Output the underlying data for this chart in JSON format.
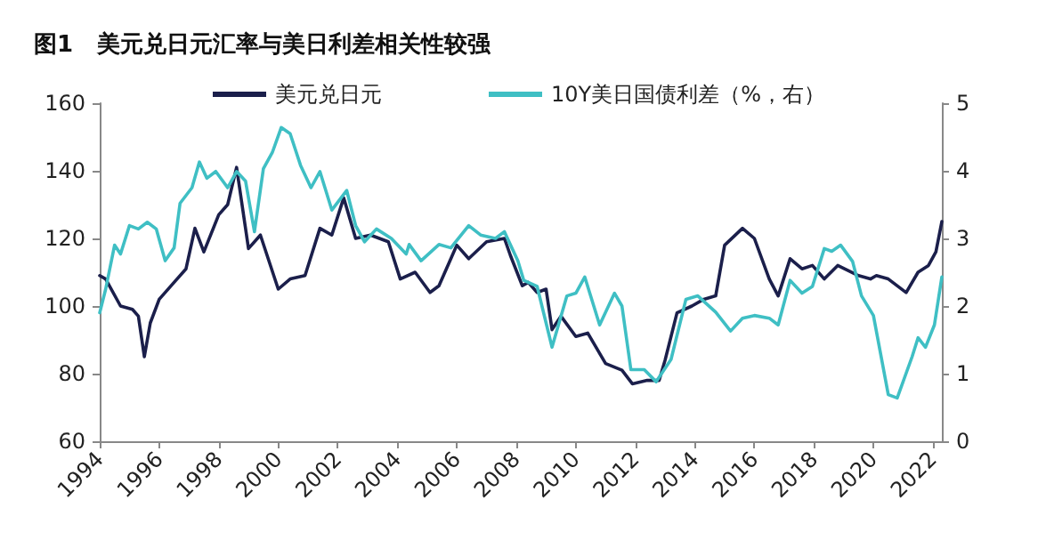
{
  "chart_data": {
    "type": "line",
    "title": "图1   美元兑日元汇率与美日利差相关性较强",
    "legend": "top",
    "grid": false,
    "marker": "none",
    "line_style": "solid",
    "xlim": [
      1994,
      2022.3
    ],
    "xticks": [
      1994,
      1996,
      1998,
      2000,
      2002,
      2004,
      2006,
      2008,
      2010,
      2012,
      2014,
      2016,
      2018,
      2020,
      2022
    ],
    "ylim": [
      60,
      160
    ],
    "yticks": [
      60,
      80,
      100,
      120,
      140,
      160
    ],
    "y2lim": [
      0,
      5
    ],
    "y2ticks": [
      0,
      1,
      2,
      3,
      4,
      5
    ],
    "series": [
      {
        "name": "美元兑日元",
        "color": "#1b1f4b",
        "axis": "y",
        "x": [
          1994.0,
          1994.2,
          1994.7,
          1995.1,
          1995.3,
          1995.5,
          1995.7,
          1996.0,
          1996.5,
          1996.9,
          1997.2,
          1997.5,
          1998.0,
          1998.3,
          1998.6,
          1999.0,
          1999.4,
          2000.0,
          2000.4,
          2000.9,
          2001.4,
          2001.8,
          2002.2,
          2002.6,
          2003.1,
          2003.7,
          2004.1,
          2004.6,
          2005.1,
          2005.4,
          2006.0,
          2006.4,
          2007.0,
          2007.6,
          2007.8,
          2008.2,
          2008.4,
          2008.7,
          2009.0,
          2009.2,
          2009.5,
          2010.0,
          2010.4,
          2011.0,
          2011.55,
          2011.9,
          2012.4,
          2012.8,
          2013.0,
          2013.4,
          2013.9,
          2014.3,
          2014.7,
          2015.0,
          2015.6,
          2016.0,
          2016.5,
          2016.8,
          2017.2,
          2017.6,
          2017.95,
          2018.35,
          2018.8,
          2019.5,
          2019.9,
          2020.1,
          2020.5,
          2021.1,
          2021.5,
          2021.85,
          2022.1,
          2022.3
        ],
        "values": [
          109,
          108,
          100,
          99,
          97,
          85,
          95,
          102,
          107,
          111,
          123,
          116,
          127,
          130,
          141,
          117,
          121,
          105,
          108,
          109,
          123,
          121,
          132,
          120,
          121,
          119,
          108,
          110,
          104,
          106,
          118,
          114,
          119,
          120,
          115,
          106,
          107,
          104,
          105,
          93,
          97,
          91,
          92,
          83,
          81,
          77,
          78,
          78,
          84,
          98,
          100,
          102,
          103,
          118,
          123,
          120,
          108,
          103,
          114,
          111,
          112,
          108,
          112,
          109,
          108,
          109,
          108,
          104,
          110,
          112,
          116,
          125
        ]
      },
      {
        "name": "10Y美日国债利差（%，右）",
        "color": "#3fbfc4",
        "axis": "y2",
        "x": [
          1994.0,
          1994.2,
          1994.5,
          1994.7,
          1995.0,
          1995.3,
          1995.6,
          1995.9,
          1996.2,
          1996.5,
          1996.7,
          1997.1,
          1997.35,
          1997.6,
          1997.9,
          1998.3,
          1998.6,
          1998.9,
          1999.2,
          1999.5,
          1999.8,
          2000.1,
          2000.4,
          2000.75,
          2001.1,
          2001.4,
          2001.8,
          2002.3,
          2002.6,
          2002.9,
          2003.3,
          2003.8,
          2004.3,
          2004.4,
          2004.8,
          2005.4,
          2005.8,
          2006.4,
          2006.8,
          2007.3,
          2007.6,
          2008.05,
          2008.25,
          2008.7,
          2009.2,
          2009.7,
          2010.0,
          2010.3,
          2010.8,
          2011.3,
          2011.55,
          2011.85,
          2012.3,
          2012.7,
          2013.2,
          2013.7,
          2014.1,
          2014.7,
          2015.2,
          2015.6,
          2016.0,
          2016.5,
          2016.8,
          2017.2,
          2017.6,
          2017.95,
          2018.35,
          2018.6,
          2018.9,
          2019.3,
          2019.6,
          2020.0,
          2020.5,
          2020.8,
          2021.3,
          2021.5,
          2021.75,
          2022.05,
          2022.3
        ],
        "values": [
          1.9,
          2.25,
          2.9,
          2.77,
          3.19,
          3.14,
          3.24,
          3.14,
          2.67,
          2.86,
          3.52,
          3.75,
          4.13,
          3.89,
          3.99,
          3.75,
          3.99,
          3.85,
          3.1,
          4.03,
          4.27,
          4.64,
          4.55,
          4.08,
          3.75,
          3.99,
          3.42,
          3.71,
          3.19,
          2.95,
          3.14,
          3.0,
          2.77,
          2.91,
          2.67,
          2.91,
          2.86,
          3.19,
          3.05,
          3.0,
          3.1,
          2.67,
          2.38,
          2.29,
          1.39,
          2.15,
          2.19,
          2.43,
          1.72,
          2.19,
          2.0,
          1.06,
          1.06,
          0.88,
          1.21,
          2.1,
          2.15,
          1.91,
          1.63,
          1.82,
          1.86,
          1.82,
          1.72,
          2.38,
          2.19,
          2.29,
          2.85,
          2.81,
          2.9,
          2.66,
          2.15,
          1.86,
          0.69,
          0.64,
          1.25,
          1.53,
          1.39,
          1.72,
          2.43
        ]
      }
    ]
  }
}
